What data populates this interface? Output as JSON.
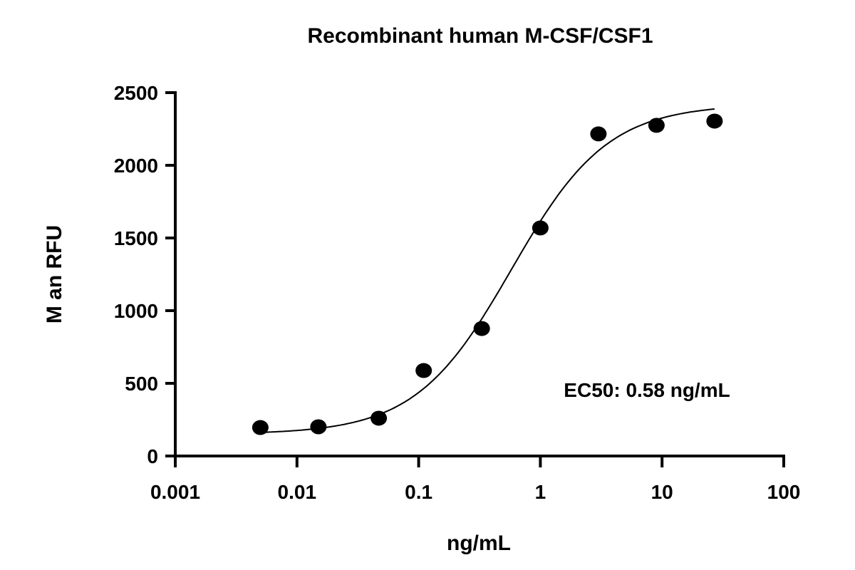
{
  "chart_data": {
    "type": "scatter",
    "title": "Recombinant human M-CSF/CSF1",
    "xlabel": "ng/mL",
    "ylabel": "M  an RFU",
    "xscale": "log",
    "xlim": [
      0.001,
      100
    ],
    "ylim": [
      0,
      2500
    ],
    "xticks": [
      "0.001",
      "0.01",
      "0.1",
      "1",
      "10",
      "100"
    ],
    "yticks": [
      "0",
      "500",
      "1000",
      "1500",
      "2000",
      "2500"
    ],
    "grid": false,
    "annotation": "EC50: 0.58 ng/mL",
    "points": {
      "x": [
        0.005,
        0.015,
        0.047,
        0.11,
        0.33,
        1.0,
        3.0,
        9.0,
        27
      ],
      "y": [
        196,
        201,
        260,
        588,
        877,
        1569,
        2216,
        2275,
        2304
      ]
    },
    "fit": {
      "model": "4PL",
      "bottom": 150,
      "top": 2420,
      "ec50": 0.58,
      "hill": 1.1,
      "x_range": [
        0.005,
        27
      ]
    },
    "marker_color": "#000000",
    "line_color": "#000000"
  }
}
